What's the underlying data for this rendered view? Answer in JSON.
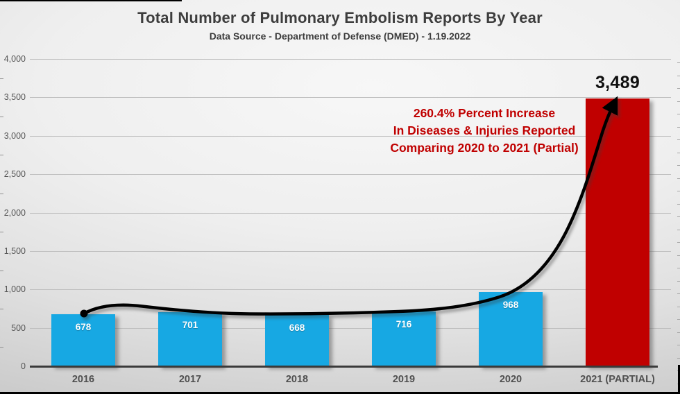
{
  "chart_data": {
    "type": "bar",
    "title": "Total Number of Pulmonary Embolism Reports By Year",
    "subtitle": "Data Source - Department of Defense (DMED) - 1.19.2022",
    "categories": [
      "2016",
      "2017",
      "2018",
      "2019",
      "2020",
      "2021 (PARTIAL)"
    ],
    "values": [
      678,
      701,
      668,
      716,
      968,
      3489
    ],
    "value_labels_inside": [
      "678",
      "701",
      "668",
      "716",
      "968",
      null
    ],
    "callout": {
      "text": "3,489",
      "category": "2021 (PARTIAL)"
    },
    "bar_colors": [
      "#17a8e3",
      "#17a8e3",
      "#17a8e3",
      "#17a8e3",
      "#17a8e3",
      "#c00000"
    ],
    "xlabel": "",
    "ylabel": "",
    "ylim": [
      0,
      4000
    ],
    "ytick_step": 500,
    "ytick_labels": [
      "0",
      "500",
      "1,000",
      "1,500",
      "2,000",
      "2,500",
      "3,000",
      "3,500",
      "4,000"
    ],
    "grid": true,
    "legend": false,
    "annotation": {
      "lines": [
        "260.4% Percent Increase",
        "In Diseases & Injuries Reported",
        "Comparing 2020 to 2021 (Partial)"
      ],
      "color": "#c00000"
    },
    "trend_arrow": {
      "shape": "curved-arrow-with-start-dot",
      "from_category": "2016",
      "to_category": "2021 (PARTIAL)",
      "color": "#000000"
    }
  }
}
